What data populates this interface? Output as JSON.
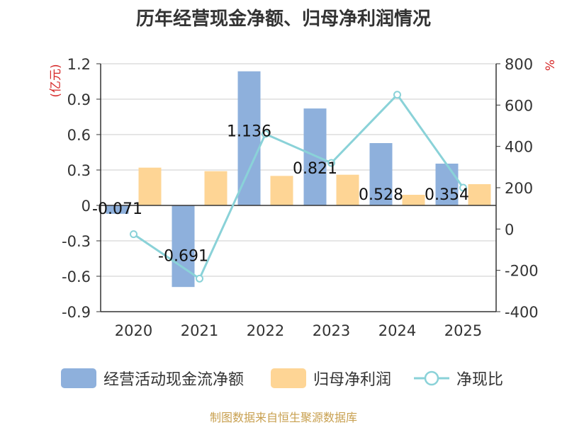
{
  "chart_data": {
    "type": "bar",
    "title": "历年经营现金净额、归母净利润情况",
    "categories": [
      "2020",
      "2021",
      "2022",
      "2023",
      "2024",
      "2025"
    ],
    "series": [
      {
        "name": "经营活动现金流净额",
        "type": "bar",
        "axis": "left",
        "color": "#8eb0dc",
        "values": [
          -0.071,
          -0.691,
          1.136,
          0.821,
          0.528,
          0.354
        ],
        "labels": [
          "-0.071",
          "-0.691",
          "1.136",
          "0.821",
          "0.528",
          "0.354"
        ]
      },
      {
        "name": "归母净利润",
        "type": "bar",
        "axis": "left",
        "color": "#fed595",
        "values": [
          0.32,
          0.29,
          0.25,
          0.26,
          0.09,
          0.18
        ]
      },
      {
        "name": "净现比",
        "type": "line",
        "axis": "right",
        "color": "#8ad2d8",
        "values": [
          -25,
          -240,
          460,
          320,
          650,
          200
        ]
      }
    ],
    "y_left": {
      "unit": "(亿元)",
      "min": -0.9,
      "max": 1.2,
      "ticks": [
        "1.2",
        "0.9",
        "0.6",
        "0.3",
        "0",
        "-0.3",
        "-0.6",
        "-0.9"
      ]
    },
    "y_right": {
      "unit": "%",
      "min": -400,
      "max": 800,
      "ticks": [
        "800",
        "600",
        "400",
        "200",
        "0",
        "-200",
        "-400"
      ]
    },
    "grid": true,
    "legend_position": "bottom"
  },
  "source_note": "制图数据来自恒生聚源数据库"
}
